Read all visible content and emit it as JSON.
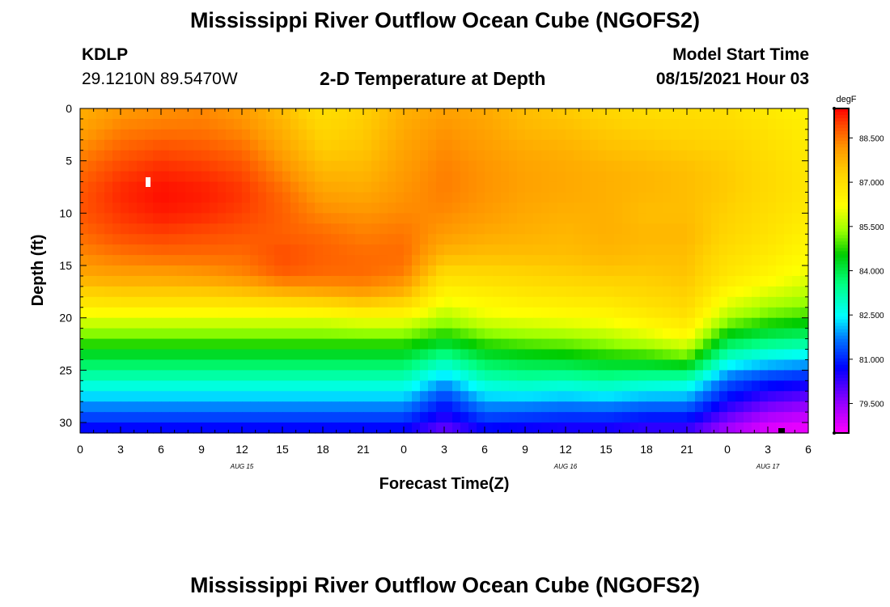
{
  "header": {
    "title": "Mississippi River Outflow Ocean Cube (NGOFS2)",
    "station_id": "KDLP",
    "station_coords": "29.1210N  89.5470W",
    "subtitle": "2-D Temperature at Depth",
    "model_start_label": "Model Start Time",
    "model_start_time": "08/15/2021 Hour 03"
  },
  "footer": {
    "title": "Mississippi River Outflow Ocean Cube (NGOFS2)"
  },
  "chart_data": {
    "type": "heatmap",
    "title": "2-D Temperature at Depth",
    "xlabel": "Forecast Time(Z)",
    "ylabel": "Depth (ft)",
    "xlim": [
      0,
      54
    ],
    "ylim": [
      31,
      0
    ],
    "x_ticks": [
      0,
      3,
      6,
      9,
      12,
      15,
      18,
      21,
      24,
      27,
      30,
      33,
      36,
      39,
      42,
      45,
      48,
      51,
      54
    ],
    "x_tick_labels": [
      "0",
      "3",
      "6",
      "9",
      "12",
      "15",
      "18",
      "21",
      "0",
      "3",
      "6",
      "9",
      "12",
      "15",
      "18",
      "21",
      "0",
      "3",
      "6"
    ],
    "y_ticks": [
      0,
      5,
      10,
      15,
      20,
      25,
      30
    ],
    "y_tick_labels": [
      "0",
      "5",
      "10",
      "15",
      "20",
      "25",
      "30"
    ],
    "date_labels": [
      {
        "label": "AUG 15",
        "x": 12
      },
      {
        "label": "AUG 16",
        "x": 36
      },
      {
        "label": "AUG 17",
        "x": 51
      }
    ],
    "colorbar": {
      "unit": "degF",
      "range": [
        78.5,
        89.5
      ],
      "ticks": [
        88.5,
        87.0,
        85.5,
        84.0,
        82.5,
        81.0,
        79.5
      ],
      "tick_labels": [
        "88.500",
        "87.000",
        "85.500",
        "84.000",
        "82.500",
        "81.000",
        "79.500"
      ]
    },
    "x_hours": [
      0,
      3,
      6,
      9,
      12,
      15,
      18,
      21,
      24,
      27,
      30,
      33,
      36,
      39,
      42,
      45,
      48,
      51,
      54
    ],
    "depths_ft": [
      0,
      2,
      4,
      6,
      8,
      10,
      12,
      14,
      16,
      18,
      20,
      22,
      24,
      26,
      28,
      30,
      31
    ],
    "temperature_degF": [
      [
        87.8,
        88.1,
        88.2,
        88.3,
        88.1,
        87.6,
        87.0,
        87.3,
        87.8,
        88.0,
        87.9,
        87.6,
        87.4,
        87.2,
        87.0,
        87.0,
        87.0,
        86.7,
        86.5
      ],
      [
        88.0,
        88.4,
        88.5,
        88.5,
        88.3,
        87.8,
        87.2,
        87.4,
        87.9,
        88.2,
        88.0,
        87.7,
        87.6,
        87.4,
        87.3,
        87.2,
        87.1,
        86.9,
        86.6
      ],
      [
        88.3,
        88.7,
        88.9,
        88.8,
        88.6,
        88.0,
        87.4,
        87.5,
        88.0,
        88.3,
        88.1,
        87.9,
        87.8,
        87.6,
        87.5,
        87.4,
        87.3,
        87.0,
        86.7
      ],
      [
        88.6,
        89.0,
        89.2,
        89.1,
        88.9,
        88.3,
        87.7,
        87.7,
        88.1,
        88.4,
        88.2,
        88.0,
        87.9,
        87.8,
        87.7,
        87.6,
        87.4,
        87.1,
        86.8
      ],
      [
        88.8,
        89.2,
        89.4,
        89.3,
        89.1,
        88.6,
        88.0,
        87.9,
        88.2,
        88.4,
        88.2,
        88.0,
        87.9,
        87.8,
        87.7,
        87.6,
        87.4,
        87.1,
        86.8
      ],
      [
        88.8,
        89.1,
        89.3,
        89.2,
        89.0,
        88.7,
        88.3,
        88.2,
        88.3,
        88.3,
        88.1,
        87.9,
        87.8,
        87.8,
        87.6,
        87.6,
        87.3,
        87.0,
        86.7
      ],
      [
        88.6,
        88.9,
        89.0,
        88.9,
        88.8,
        88.7,
        88.6,
        88.4,
        88.5,
        88.1,
        87.9,
        87.8,
        87.7,
        87.8,
        87.7,
        87.7,
        87.2,
        86.9,
        86.5
      ],
      [
        88.3,
        88.5,
        88.6,
        88.6,
        88.6,
        88.9,
        88.7,
        88.6,
        88.6,
        87.7,
        87.6,
        87.6,
        87.6,
        87.7,
        87.6,
        87.6,
        87.0,
        86.7,
        86.3
      ],
      [
        87.9,
        88.0,
        88.0,
        88.1,
        88.3,
        88.7,
        88.6,
        88.6,
        88.4,
        87.0,
        87.1,
        87.2,
        87.3,
        87.4,
        87.4,
        87.5,
        86.8,
        86.4,
        86.0
      ],
      [
        87.1,
        87.2,
        87.2,
        87.2,
        87.3,
        87.5,
        87.7,
        87.9,
        87.6,
        86.3,
        86.5,
        86.7,
        86.8,
        86.9,
        87.1,
        87.3,
        86.2,
        85.8,
        85.5
      ],
      [
        86.0,
        86.0,
        86.0,
        86.0,
        86.0,
        86.0,
        86.0,
        86.2,
        86.2,
        85.5,
        86.0,
        86.1,
        86.2,
        86.3,
        86.6,
        86.9,
        85.5,
        85.0,
        84.8
      ],
      [
        85.0,
        85.0,
        85.0,
        85.0,
        85.0,
        85.0,
        85.0,
        85.0,
        85.0,
        84.5,
        85.0,
        85.2,
        85.3,
        85.5,
        85.8,
        86.2,
        84.2,
        83.8,
        83.6
      ],
      [
        84.0,
        84.0,
        84.0,
        84.0,
        84.0,
        84.0,
        84.0,
        84.0,
        84.0,
        83.2,
        84.0,
        84.2,
        84.3,
        84.5,
        84.6,
        84.9,
        82.8,
        82.4,
        82.2
      ],
      [
        83.0,
        83.0,
        83.0,
        83.0,
        83.0,
        83.0,
        83.0,
        83.0,
        83.0,
        82.0,
        83.0,
        83.2,
        83.1,
        83.3,
        83.1,
        83.0,
        81.5,
        81.0,
        80.8
      ],
      [
        82.0,
        82.0,
        82.0,
        82.0,
        82.0,
        82.0,
        82.0,
        82.0,
        82.0,
        81.0,
        82.0,
        82.0,
        81.9,
        82.0,
        81.8,
        81.8,
        80.6,
        80.0,
        79.7
      ],
      [
        81.0,
        81.0,
        81.0,
        81.0,
        81.0,
        81.0,
        81.0,
        81.0,
        81.0,
        80.2,
        81.0,
        80.9,
        80.8,
        80.8,
        80.6,
        80.6,
        79.6,
        79.0,
        78.8
      ],
      [
        80.5,
        80.5,
        80.5,
        80.5,
        80.5,
        80.5,
        80.5,
        80.5,
        80.5,
        79.7,
        80.5,
        80.4,
        80.3,
        80.3,
        80.1,
        80.1,
        79.2,
        78.7,
        78.6
      ]
    ]
  }
}
